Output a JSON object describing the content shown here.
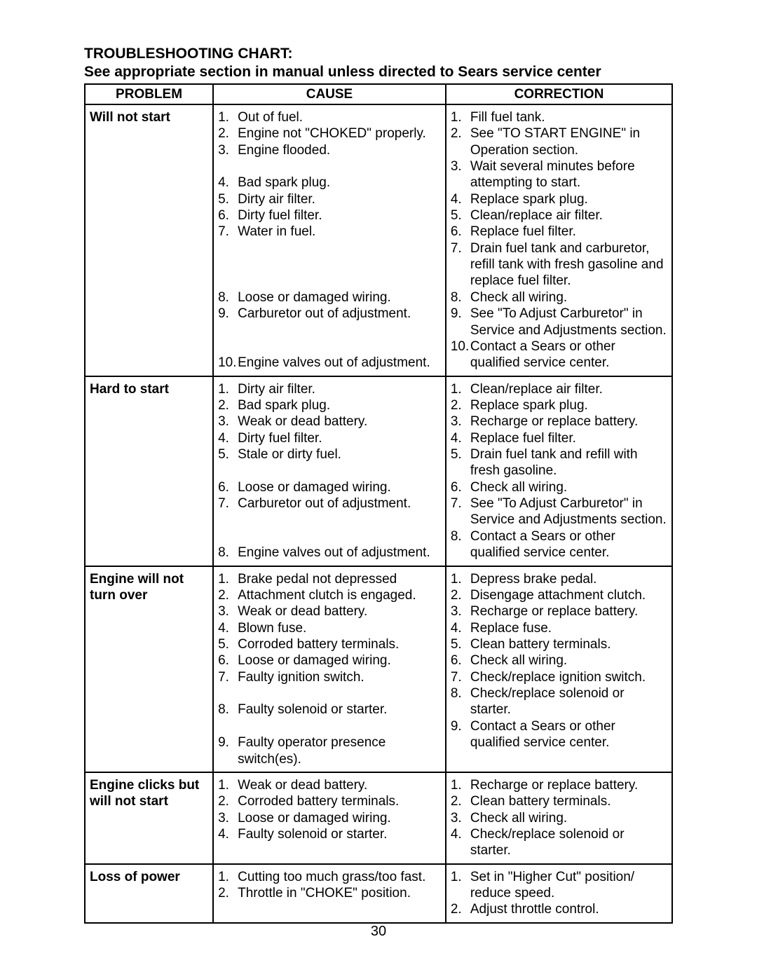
{
  "title_line1": "TROUBLESHOOTING CHART:",
  "title_line2": "See appropriate section in manual unless directed to Sears service center",
  "page_number": "30",
  "columns": {
    "problem": "PROBLEM",
    "cause": "CAUSE",
    "correction": "CORRECTION"
  },
  "col_widths": {
    "problem": 170,
    "cause": 308,
    "correction": 300
  },
  "rows": [
    {
      "problem": "Will not start",
      "cause": [
        "Out of fuel.",
        "Engine not \"CHOKED\" properly.",
        "Engine flooded.",
        "",
        "Bad spark plug.",
        "Dirty air filter.",
        "Dirty fuel filter.",
        "Water in fuel.",
        "",
        "",
        "",
        "Loose or damaged wiring.",
        "Carburetor out of adjustment.",
        "",
        "",
        "Engine valves out of adjustment."
      ],
      "cause_nums": [
        "1.",
        "2.",
        "3.",
        "",
        "4.",
        "5.",
        "6.",
        "7.",
        "",
        "",
        "",
        "8.",
        "9.",
        "",
        "",
        "10."
      ],
      "correction": [
        "Fill fuel tank.",
        "See \"TO START ENGINE\" in Operation section.",
        "Wait several minutes before attempting to start.",
        "Replace spark plug.",
        "Clean/replace air filter.",
        "Replace fuel filter.",
        "Drain fuel tank and carburetor, refill tank with fresh gasoline and replace fuel filter.",
        "Check all wiring.",
        "See \"To Adjust Carburetor\" in Service and Adjustments section.",
        "Contact a Sears or other qualified service center."
      ],
      "correction_nums": [
        "1.",
        "2.",
        "3.",
        "4.",
        "5.",
        "6.",
        "7.",
        "8.",
        "9.",
        "10."
      ]
    },
    {
      "problem": "Hard to start",
      "cause": [
        "Dirty air filter.",
        "Bad spark plug.",
        "Weak or dead battery.",
        "Dirty fuel filter.",
        "Stale or dirty fuel.",
        "",
        "Loose or damaged wiring.",
        "Carburetor out of adjustment.",
        "",
        "",
        "Engine valves out of adjustment."
      ],
      "cause_nums": [
        "1.",
        "2.",
        "3.",
        "4.",
        "5.",
        "",
        "6.",
        "7.",
        "",
        "",
        "8."
      ],
      "correction": [
        "Clean/replace air filter.",
        "Replace spark plug.",
        "Recharge or replace battery.",
        "Replace fuel filter.",
        "Drain fuel tank and refill with fresh gasoline.",
        "Check all wiring.",
        "See \"To Adjust Carburetor\" in Service and Adjustments section.",
        "Contact a Sears or other qualified service center."
      ],
      "correction_nums": [
        "1.",
        "2.",
        "3.",
        "4.",
        "5.",
        "6.",
        "7.",
        "8."
      ]
    },
    {
      "problem": "Engine will not turn over",
      "cause": [
        "Brake pedal not depressed",
        "Attachment clutch is engaged.",
        "Weak or dead battery.",
        "Blown fuse.",
        "Corroded battery terminals.",
        "Loose or damaged wiring.",
        "Faulty ignition switch.",
        "",
        "Faulty solenoid or starter.",
        "",
        "Faulty operator presence switch(es)."
      ],
      "cause_nums": [
        "1.",
        "2.",
        "3.",
        "4.",
        "5.",
        "6.",
        "7.",
        "",
        "8.",
        "",
        "9."
      ],
      "correction": [
        "Depress brake pedal.",
        "Disengage attachment clutch.",
        "Recharge or replace battery.",
        "Replace fuse.",
        "Clean battery terminals.",
        "Check all wiring.",
        "Check/replace ignition switch.",
        "Check/replace solenoid or starter.",
        "Contact a Sears or other qualified service center."
      ],
      "correction_nums": [
        "1.",
        "2.",
        "3.",
        "4.",
        "5.",
        "6.",
        "7.",
        "8.",
        "9."
      ]
    },
    {
      "problem": "Engine clicks but will not start",
      "cause": [
        "Weak or dead battery.",
        "Corroded battery terminals.",
        "Loose or damaged wiring.",
        "Faulty solenoid or starter."
      ],
      "cause_nums": [
        "1.",
        "2.",
        "3.",
        "4."
      ],
      "correction": [
        "Recharge or replace battery.",
        "Clean battery terminals.",
        "Check all wiring.",
        "Check/replace solenoid or starter."
      ],
      "correction_nums": [
        "1.",
        "2.",
        "3.",
        "4."
      ]
    },
    {
      "problem": "Loss of power",
      "cause": [
        "Cutting too much grass/too fast.",
        "Throttle in \"CHOKE\" position."
      ],
      "cause_nums": [
        "1.",
        "2."
      ],
      "correction": [
        "Set in \"Higher Cut\" position/ reduce speed.",
        "Adjust throttle control."
      ],
      "correction_nums": [
        "1.",
        "2."
      ]
    }
  ]
}
